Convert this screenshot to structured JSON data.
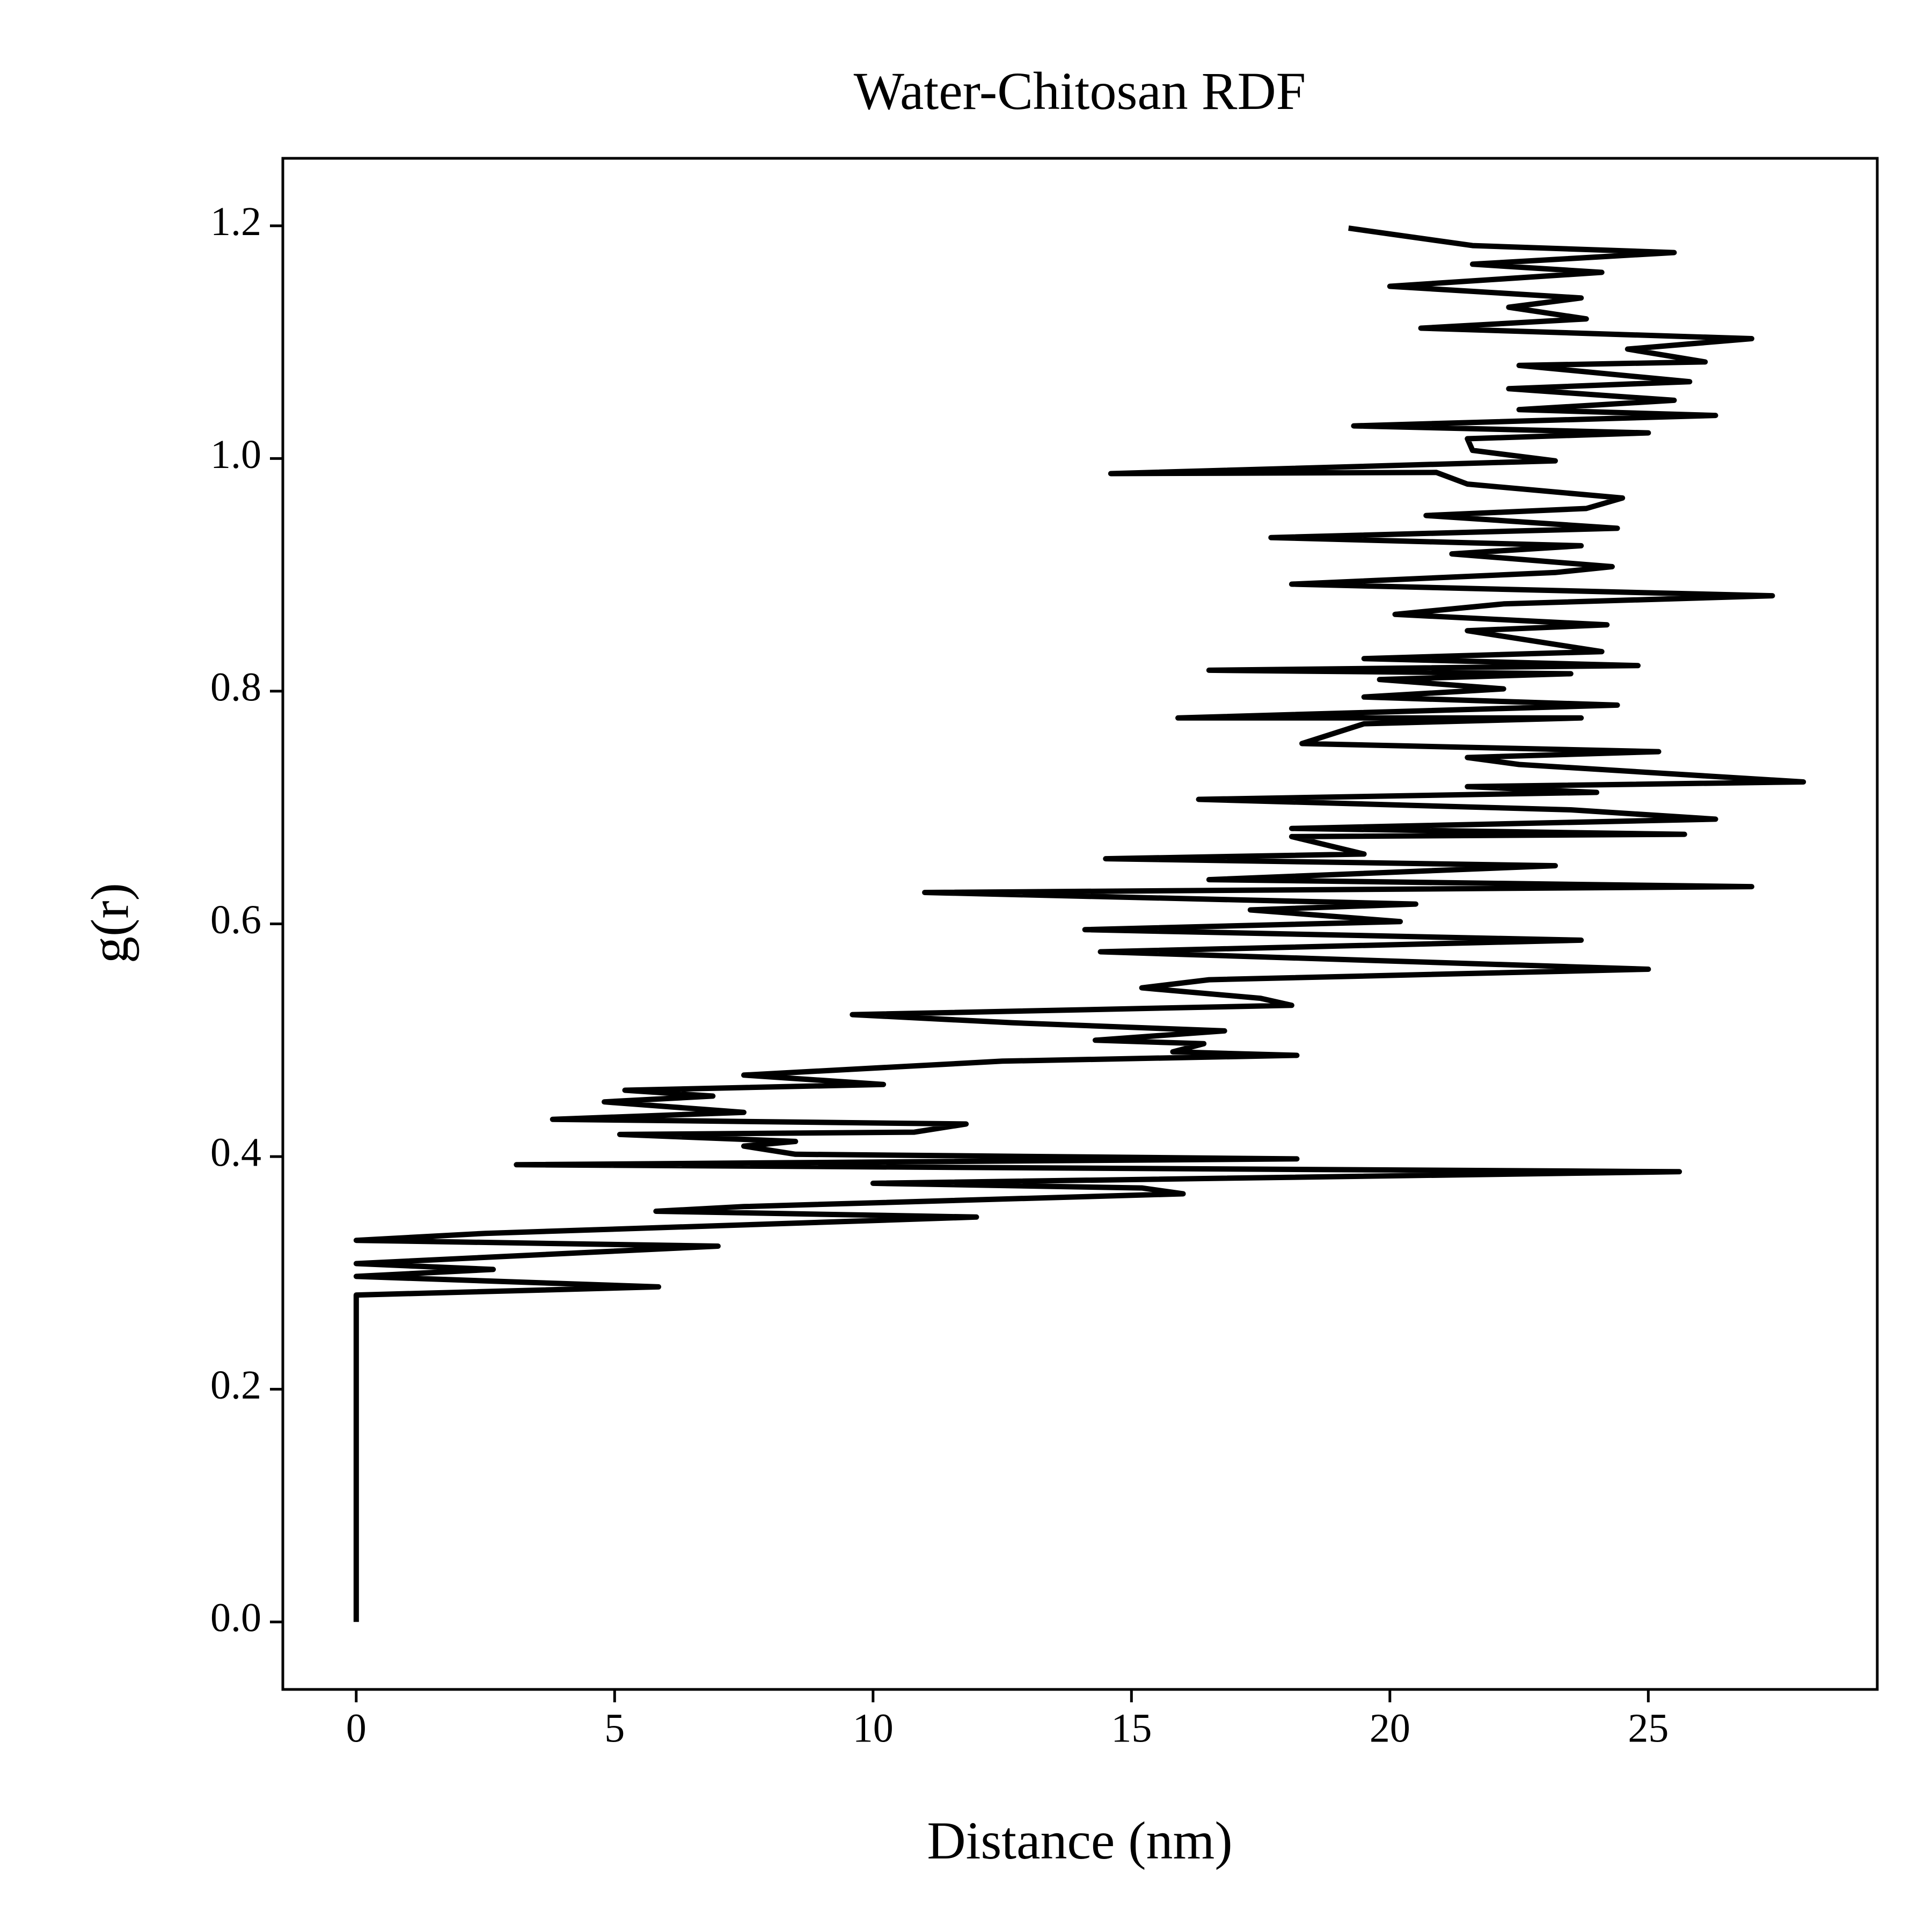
{
  "chart_data": {
    "type": "line",
    "title": "Water-Chitosan RDF",
    "xlabel": "Distance (nm)",
    "ylabel": "g(r)",
    "color": "#000000",
    "x": [
      0,
      0,
      5.85,
      0,
      2.65,
      0,
      7,
      0,
      2.5,
      8,
      12,
      5.8,
      7.5,
      16,
      15.2,
      10,
      25.6,
      3.1,
      18.2,
      8.5,
      7.5,
      8.5,
      5.1,
      10.8,
      11.8,
      3.8,
      7.5,
      4.8,
      6.9,
      5.2,
      10.2,
      7.5,
      12.5,
      18.2,
      15.8,
      16.4,
      14.3,
      16.8,
      12.7,
      9.6,
      18.1,
      17.5,
      15.2,
      16.5,
      25,
      14.4,
      23.7,
      14.1,
      20.2,
      17.3,
      20.5,
      11,
      27,
      16.5,
      23.2,
      14.5,
      19.5,
      18.1,
      25.7,
      18.1,
      26.3,
      23.5,
      16.3,
      24,
      21.5,
      28,
      22.5,
      21.5,
      25.2,
      18.3,
      19.5,
      23.7,
      15.9,
      24.4,
      19.5,
      22.2,
      19.8,
      23.5,
      16.5,
      24.8,
      19.5,
      24.1,
      21.5,
      24.2,
      20.1,
      22.2,
      27.4,
      18.1,
      23.2,
      24.3,
      21.2,
      23.7,
      17.7,
      24.4,
      20.7,
      23.8,
      24.5,
      21.5,
      20.9,
      14.6,
      23.2,
      21.6,
      21.5,
      25,
      19.3,
      26.3,
      22.5,
      25.5,
      22.3,
      25.8,
      22.5,
      26.1,
      24.6,
      27,
      20.6,
      23.8,
      22.3,
      23.7,
      20,
      24.1,
      21.6,
      25.5,
      21.6,
      19.2
    ],
    "values": [
      0,
      0.281,
      0.288,
      0.297,
      0.303,
      0.308,
      0.323,
      0.328,
      0.334,
      0.342,
      0.348,
      0.353,
      0.357,
      0.368,
      0.373,
      0.377,
      0.387,
      0.393,
      0.398,
      0.402,
      0.409,
      0.413,
      0.419,
      0.421,
      0.428,
      0.432,
      0.438,
      0.447,
      0.452,
      0.457,
      0.462,
      0.47,
      0.482,
      0.487,
      0.49,
      0.497,
      0.5,
      0.508,
      0.515,
      0.522,
      0.53,
      0.536,
      0.545,
      0.552,
      0.561,
      0.576,
      0.586,
      0.595,
      0.602,
      0.612,
      0.617,
      0.627,
      0.632,
      0.638,
      0.65,
      0.656,
      0.66,
      0.675,
      0.677,
      0.682,
      0.69,
      0.698,
      0.707,
      0.713,
      0.718,
      0.722,
      0.737,
      0.743,
      0.748,
      0.755,
      0.772,
      0.777,
      0.777,
      0.788,
      0.795,
      0.802,
      0.81,
      0.815,
      0.818,
      0.822,
      0.828,
      0.834,
      0.852,
      0.857,
      0.866,
      0.875,
      0.882,
      0.892,
      0.902,
      0.907,
      0.918,
      0.925,
      0.932,
      0.94,
      0.951,
      0.957,
      0.966,
      0.978,
      0.988,
      0.987,
      0.998,
      1.007,
      1.017,
      1.022,
      1.028,
      1.037,
      1.042,
      1.05,
      1.06,
      1.066,
      1.08,
      1.083,
      1.094,
      1.103,
      1.112,
      1.12,
      1.13,
      1.138,
      1.148,
      1.16,
      1.167,
      1.177,
      1.183,
      1.198
    ],
    "xlim": [
      -1.42,
      29.43
    ],
    "ylim": [
      -0.058,
      1.258
    ],
    "xticks": [
      0,
      5,
      10,
      15,
      20,
      25
    ],
    "yticks": [
      {
        "value": 0,
        "label": "0.0"
      },
      0.2,
      0.4,
      0.6,
      0.8,
      {
        "value": 1,
        "label": "1.0"
      },
      1.2
    ]
  }
}
